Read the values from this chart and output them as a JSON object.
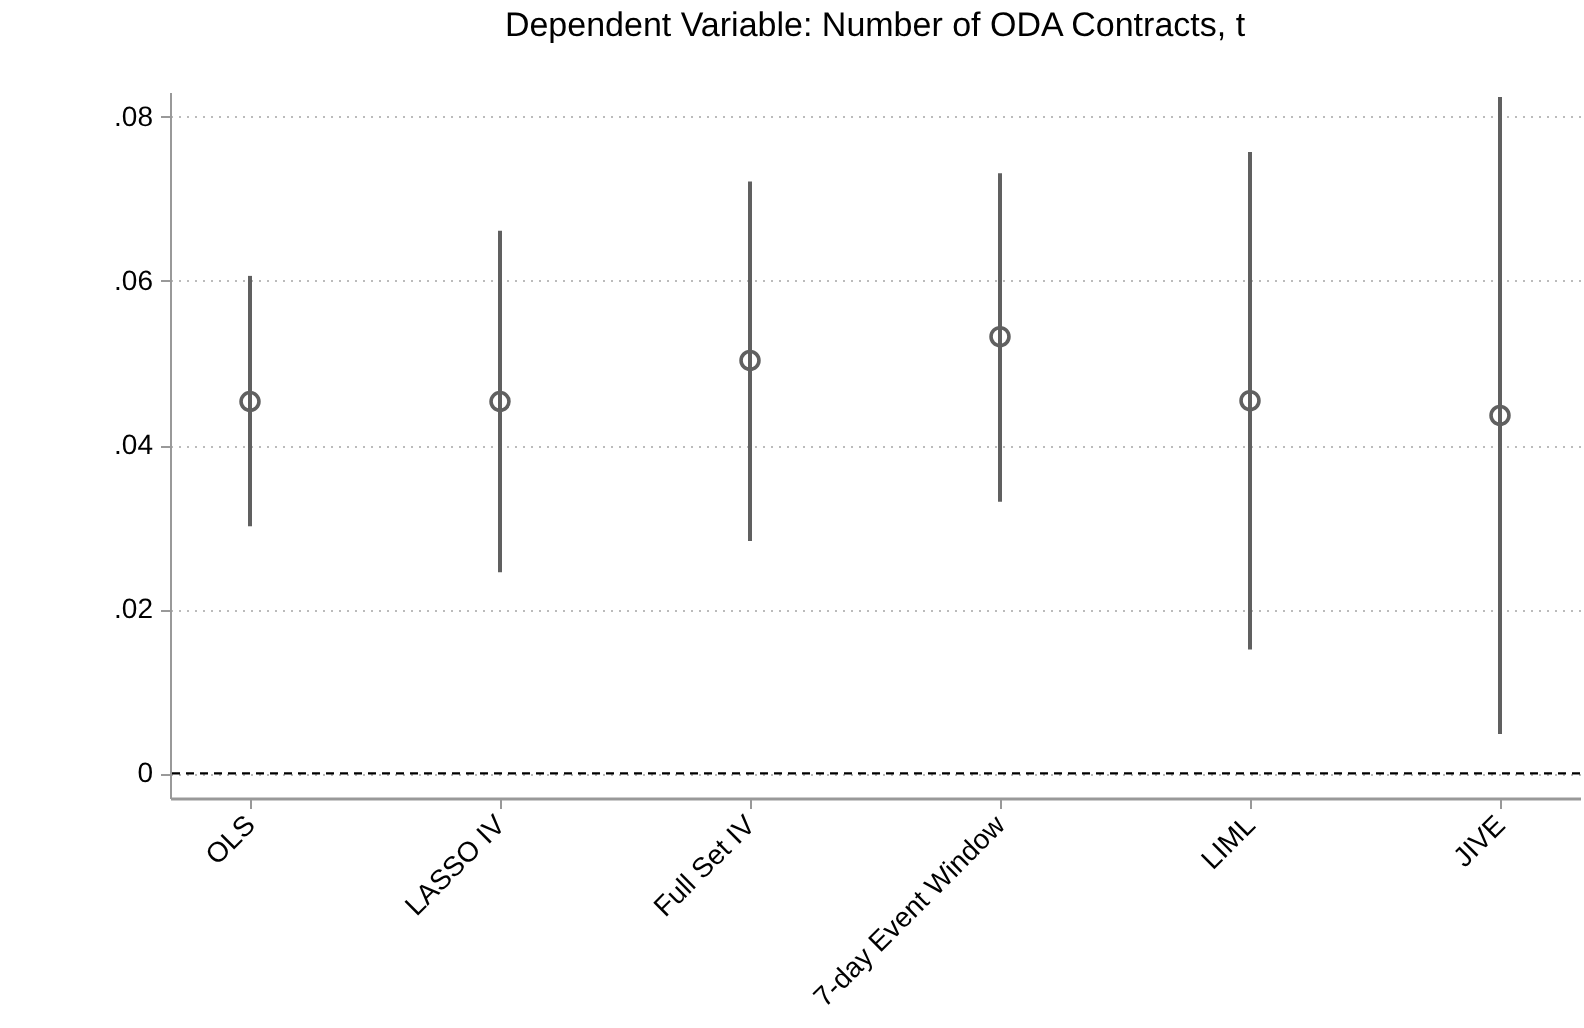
{
  "chart_data": {
    "type": "scatter",
    "title": "Dependent Variable: Number of ODA Contracts, t",
    "categories": [
      "OLS",
      "LASSO IV",
      "Full Set IV",
      "7-day Event Window",
      "LIML",
      "JIVE"
    ],
    "series": [
      {
        "color": "#606060",
        "values": [
          0.0453,
          0.0453,
          0.0503,
          0.0532,
          0.0454,
          0.0436
        ],
        "errors": [
          [
            0.0301,
            0.0606
          ],
          [
            0.0245,
            0.0661
          ],
          [
            0.0283,
            0.0721
          ],
          [
            0.0331,
            0.0731
          ],
          [
            0.0151,
            0.0757
          ],
          [
            0.0048,
            0.0824
          ]
        ]
      }
    ],
    "ylim": [
      -0.003,
      0.083
    ],
    "yticks": [
      {
        "value": 0,
        "label": "0"
      },
      {
        "value": 0.02,
        "label": ".02"
      },
      {
        "value": 0.04,
        "label": ".04"
      },
      {
        "value": 0.06,
        "label": ".06"
      },
      {
        "value": 0.08,
        "label": ".08"
      }
    ],
    "grid": "y",
    "marker": "circle",
    "ref_lines": [
      {
        "axis": "y",
        "value": 0,
        "line_style": "dashed",
        "color": "#000000"
      }
    ]
  }
}
